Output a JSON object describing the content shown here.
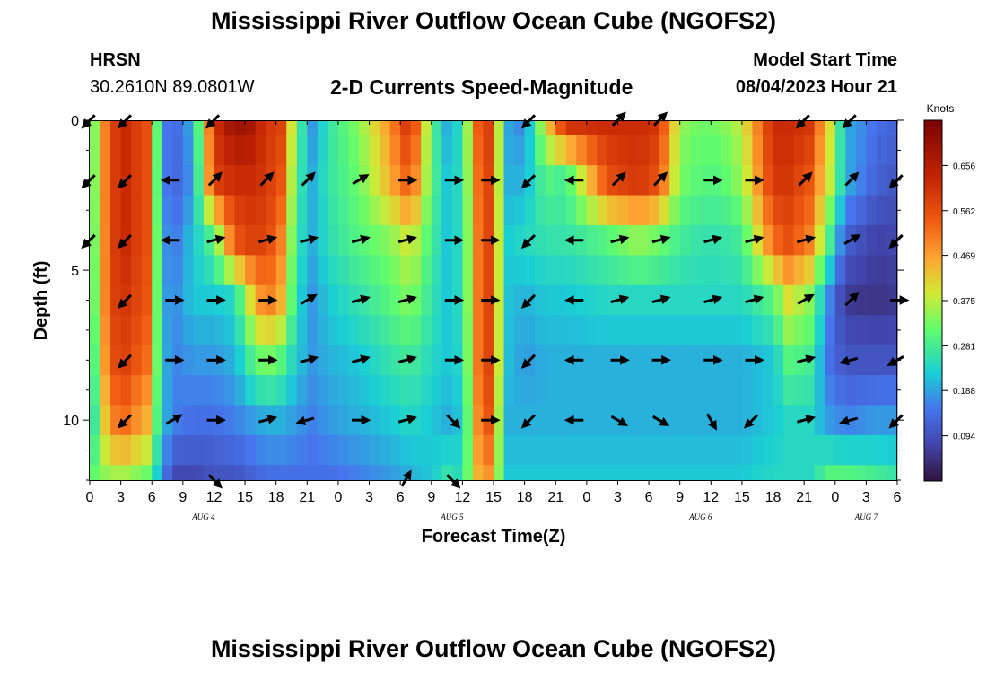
{
  "page": {
    "title": "Mississippi River Outflow Ocean Cube (NGOFS2)",
    "title_repeat": "Mississippi River Outflow Ocean Cube (NGOFS2)",
    "station_name": "HRSN",
    "station_coords": "30.2610N  89.0801W",
    "subtitle": "2-D Currents Speed-Magnitude",
    "model_start_label": "Model Start Time",
    "model_start_value": "08/04/2023 Hour 21"
  },
  "chart_data": {
    "type": "heatmap",
    "title": "2-D Currents Speed-Magnitude",
    "xlabel": "Forecast Time(Z)",
    "ylabel": "Depth (ft)",
    "colorbar_label": "Knots",
    "xlim": [
      0,
      78
    ],
    "ylim": [
      12,
      0
    ],
    "x_ticks": [
      {
        "x": 0,
        "label": "0"
      },
      {
        "x": 3,
        "label": "3"
      },
      {
        "x": 6,
        "label": "6"
      },
      {
        "x": 9,
        "label": "9"
      },
      {
        "x": 12,
        "label": "12"
      },
      {
        "x": 15,
        "label": "15"
      },
      {
        "x": 18,
        "label": "18"
      },
      {
        "x": 21,
        "label": "21"
      },
      {
        "x": 24,
        "label": "0"
      },
      {
        "x": 27,
        "label": "3"
      },
      {
        "x": 30,
        "label": "6"
      },
      {
        "x": 33,
        "label": "9"
      },
      {
        "x": 36,
        "label": "12"
      },
      {
        "x": 39,
        "label": "15"
      },
      {
        "x": 42,
        "label": "18"
      },
      {
        "x": 45,
        "label": "21"
      },
      {
        "x": 48,
        "label": "0"
      },
      {
        "x": 51,
        "label": "3"
      },
      {
        "x": 54,
        "label": "6"
      },
      {
        "x": 57,
        "label": "9"
      },
      {
        "x": 60,
        "label": "12"
      },
      {
        "x": 63,
        "label": "15"
      },
      {
        "x": 66,
        "label": "18"
      },
      {
        "x": 69,
        "label": "21"
      },
      {
        "x": 72,
        "label": "0"
      },
      {
        "x": 75,
        "label": "3"
      },
      {
        "x": 78,
        "label": "6"
      }
    ],
    "date_labels": [
      {
        "x": 11,
        "label": "AUG 4"
      },
      {
        "x": 35,
        "label": "AUG 5"
      },
      {
        "x": 59,
        "label": "AUG 6"
      },
      {
        "x": 75,
        "label": "AUG 7"
      }
    ],
    "y_ticks": [
      0,
      5,
      10
    ],
    "colorbar_ticks": [
      0.094,
      0.188,
      0.281,
      0.375,
      0.469,
      0.562,
      0.656
    ],
    "colorbar_range": [
      0.0,
      0.75
    ],
    "depths": [
      0,
      1,
      2,
      3,
      4,
      5,
      6,
      7,
      8,
      9,
      10,
      11,
      12
    ],
    "speed_profile": {
      "times": [
        0,
        2,
        3.5,
        5.5,
        7,
        8,
        10,
        12,
        14,
        15.5,
        17,
        18.5,
        20,
        21.5,
        23,
        26,
        29,
        31,
        33,
        34.5,
        36,
        37,
        38,
        39,
        40,
        42,
        44,
        46,
        50,
        53,
        55,
        57,
        59,
        61,
        63,
        66,
        67.5,
        69.5,
        71.5,
        73,
        76,
        78
      ],
      "series": [
        {
          "name": "0 ft",
          "values": [
            0.26,
            0.58,
            0.62,
            0.56,
            0.18,
            0.12,
            0.2,
            0.6,
            0.7,
            0.68,
            0.6,
            0.58,
            0.3,
            0.18,
            0.26,
            0.34,
            0.48,
            0.62,
            0.3,
            0.2,
            0.25,
            0.46,
            0.62,
            0.55,
            0.2,
            0.16,
            0.4,
            0.6,
            0.62,
            0.62,
            0.6,
            0.35,
            0.32,
            0.33,
            0.38,
            0.62,
            0.62,
            0.6,
            0.4,
            0.2,
            0.14,
            0.12
          ]
        },
        {
          "name": "2 ft",
          "values": [
            0.26,
            0.58,
            0.62,
            0.56,
            0.18,
            0.12,
            0.18,
            0.58,
            0.62,
            0.62,
            0.6,
            0.55,
            0.28,
            0.2,
            0.26,
            0.32,
            0.45,
            0.55,
            0.3,
            0.22,
            0.25,
            0.44,
            0.6,
            0.55,
            0.2,
            0.2,
            0.3,
            0.28,
            0.56,
            0.6,
            0.55,
            0.33,
            0.3,
            0.3,
            0.35,
            0.6,
            0.6,
            0.55,
            0.38,
            0.2,
            0.12,
            0.1
          ]
        },
        {
          "name": "4 ft",
          "values": [
            0.25,
            0.58,
            0.62,
            0.56,
            0.2,
            0.14,
            0.22,
            0.3,
            0.55,
            0.58,
            0.58,
            0.5,
            0.26,
            0.2,
            0.25,
            0.3,
            0.34,
            0.4,
            0.28,
            0.22,
            0.25,
            0.42,
            0.6,
            0.55,
            0.22,
            0.24,
            0.26,
            0.26,
            0.3,
            0.35,
            0.32,
            0.28,
            0.26,
            0.26,
            0.28,
            0.52,
            0.56,
            0.5,
            0.28,
            0.12,
            0.07,
            0.08
          ]
        },
        {
          "name": "6 ft",
          "values": [
            0.24,
            0.58,
            0.6,
            0.55,
            0.2,
            0.16,
            0.22,
            0.22,
            0.24,
            0.4,
            0.52,
            0.45,
            0.24,
            0.18,
            0.22,
            0.26,
            0.3,
            0.34,
            0.26,
            0.22,
            0.25,
            0.42,
            0.6,
            0.55,
            0.22,
            0.2,
            0.22,
            0.22,
            0.24,
            0.24,
            0.24,
            0.24,
            0.24,
            0.24,
            0.24,
            0.3,
            0.4,
            0.34,
            0.16,
            0.06,
            0.05,
            0.06
          ]
        },
        {
          "name": "8 ft",
          "values": [
            0.22,
            0.56,
            0.58,
            0.52,
            0.22,
            0.16,
            0.18,
            0.18,
            0.2,
            0.28,
            0.34,
            0.3,
            0.22,
            0.18,
            0.2,
            0.22,
            0.26,
            0.28,
            0.24,
            0.22,
            0.24,
            0.42,
            0.6,
            0.55,
            0.22,
            0.18,
            0.2,
            0.2,
            0.2,
            0.2,
            0.2,
            0.2,
            0.2,
            0.2,
            0.2,
            0.22,
            0.3,
            0.28,
            0.14,
            0.1,
            0.1,
            0.1
          ]
        },
        {
          "name": "10 ft",
          "values": [
            0.2,
            0.5,
            0.52,
            0.45,
            0.22,
            0.16,
            0.14,
            0.14,
            0.16,
            0.18,
            0.2,
            0.2,
            0.18,
            0.16,
            0.18,
            0.2,
            0.22,
            0.24,
            0.22,
            0.2,
            0.22,
            0.4,
            0.58,
            0.52,
            0.2,
            0.2,
            0.2,
            0.2,
            0.2,
            0.2,
            0.2,
            0.2,
            0.2,
            0.2,
            0.2,
            0.22,
            0.24,
            0.24,
            0.18,
            0.16,
            0.18,
            0.18
          ]
        },
        {
          "name": "12 ft",
          "values": [
            0.3,
            0.36,
            0.36,
            0.32,
            0.18,
            0.08,
            0.08,
            0.1,
            0.1,
            0.12,
            0.14,
            0.14,
            0.14,
            0.14,
            0.14,
            0.16,
            0.18,
            0.2,
            0.22,
            0.26,
            0.24,
            0.4,
            0.5,
            0.46,
            0.22,
            0.22,
            0.22,
            0.22,
            0.22,
            0.22,
            0.22,
            0.22,
            0.22,
            0.22,
            0.22,
            0.24,
            0.24,
            0.24,
            0.3,
            0.3,
            0.28,
            0.26
          ]
        }
      ]
    },
    "vector_rows_depth_ft": [
      0,
      2,
      4,
      6,
      8,
      10,
      12
    ],
    "vector_columns_hour": [
      0,
      3.5,
      8,
      12,
      17,
      21,
      26,
      30.5,
      35,
      38.5,
      42.5,
      47,
      51,
      55,
      60,
      64,
      69,
      73.5,
      78
    ],
    "vector_directions_deg": [
      [
        225,
        225,
        null,
        225,
        null,
        null,
        null,
        null,
        null,
        null,
        225,
        null,
        45,
        45,
        null,
        null,
        225,
        225,
        null
      ],
      [
        225,
        225,
        180,
        45,
        45,
        45,
        30,
        0,
        0,
        0,
        225,
        180,
        45,
        45,
        0,
        0,
        45,
        45,
        225
      ],
      [
        225,
        225,
        180,
        15,
        15,
        15,
        15,
        15,
        0,
        0,
        225,
        180,
        15,
        15,
        15,
        15,
        15,
        30,
        225
      ],
      [
        null,
        225,
        0,
        0,
        0,
        30,
        15,
        15,
        0,
        0,
        225,
        180,
        15,
        15,
        15,
        15,
        30,
        45,
        0
      ],
      [
        null,
        225,
        0,
        0,
        0,
        15,
        15,
        15,
        0,
        0,
        225,
        180,
        0,
        0,
        0,
        0,
        15,
        195,
        210
      ],
      [
        null,
        225,
        30,
        0,
        15,
        195,
        0,
        15,
        315,
        0,
        225,
        180,
        330,
        330,
        300,
        225,
        15,
        195,
        225
      ],
      [
        null,
        null,
        null,
        315,
        null,
        null,
        null,
        60,
        315,
        null,
        null,
        null,
        null,
        null,
        null,
        null,
        null,
        null,
        null
      ]
    ]
  }
}
